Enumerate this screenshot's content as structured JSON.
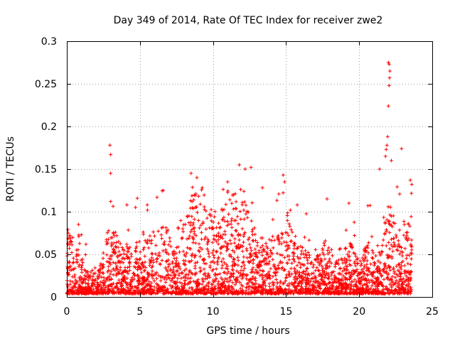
{
  "chart_data": {
    "type": "scatter",
    "title": "Day 349 of 2014, Rate Of TEC Index for receiver zwe2",
    "xlabel": "GPS time / hours",
    "ylabel": "ROTI / TECUs",
    "xlim": [
      0,
      25
    ],
    "ylim": [
      0,
      0.3
    ],
    "x_ticks": [
      "0",
      "5",
      "10",
      "15",
      "20",
      "25"
    ],
    "y_ticks": [
      "0",
      "0.05",
      "0.1",
      "0.15",
      "0.2",
      "0.25",
      "0.3"
    ],
    "grid": true,
    "marker": "+",
    "color": "#ff0000",
    "series": [
      {
        "name": "ROTI",
        "peaks": [
          {
            "x": 0.1,
            "y": 0.075
          },
          {
            "x": 0.8,
            "y": 0.085
          },
          {
            "x": 2.95,
            "y": 0.178
          },
          {
            "x": 3.0,
            "y": 0.167
          },
          {
            "x": 3.0,
            "y": 0.145
          },
          {
            "x": 3.0,
            "y": 0.112
          },
          {
            "x": 4.7,
            "y": 0.105
          },
          {
            "x": 5.5,
            "y": 0.108
          },
          {
            "x": 6.6,
            "y": 0.125
          },
          {
            "x": 8.5,
            "y": 0.145
          },
          {
            "x": 8.9,
            "y": 0.14
          },
          {
            "x": 11.0,
            "y": 0.135
          },
          {
            "x": 11.8,
            "y": 0.155
          },
          {
            "x": 12.2,
            "y": 0.15
          },
          {
            "x": 12.6,
            "y": 0.152
          },
          {
            "x": 14.8,
            "y": 0.143
          },
          {
            "x": 14.9,
            "y": 0.135
          },
          {
            "x": 17.8,
            "y": 0.115
          },
          {
            "x": 19.3,
            "y": 0.11
          },
          {
            "x": 20.6,
            "y": 0.107
          },
          {
            "x": 21.4,
            "y": 0.15
          },
          {
            "x": 22.0,
            "y": 0.275
          },
          {
            "x": 22.05,
            "y": 0.273
          },
          {
            "x": 22.1,
            "y": 0.265
          },
          {
            "x": 22.08,
            "y": 0.257
          },
          {
            "x": 22.05,
            "y": 0.248
          },
          {
            "x": 22.0,
            "y": 0.224
          },
          {
            "x": 21.95,
            "y": 0.188
          },
          {
            "x": 21.9,
            "y": 0.178
          },
          {
            "x": 21.85,
            "y": 0.173
          },
          {
            "x": 21.8,
            "y": 0.165
          },
          {
            "x": 22.2,
            "y": 0.16
          },
          {
            "x": 22.9,
            "y": 0.174
          },
          {
            "x": 23.5,
            "y": 0.137
          },
          {
            "x": 23.6,
            "y": 0.132
          }
        ]
      }
    ]
  }
}
